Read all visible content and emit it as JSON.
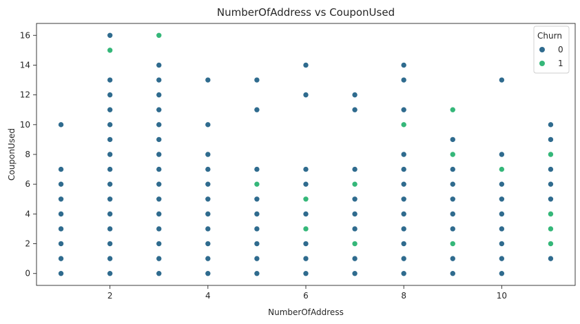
{
  "chart_data": {
    "type": "scatter",
    "title": "NumberOfAddress vs CouponUsed",
    "xlabel": "NumberOfAddress",
    "ylabel": "CouponUsed",
    "xlim": [
      0.5,
      11.5
    ],
    "ylim": [
      -0.8,
      16.8
    ],
    "xticks": [
      2,
      4,
      6,
      8,
      10
    ],
    "yticks": [
      0,
      2,
      4,
      6,
      8,
      10,
      12,
      14,
      16
    ],
    "grid": false,
    "legend": {
      "title": "Churn",
      "placement": "top-right",
      "entries": [
        {
          "label": "0",
          "color": "#2f6b8e"
        },
        {
          "label": "1",
          "color": "#35b779"
        }
      ]
    },
    "series": [
      {
        "name": "0",
        "color": "#2f6b8e",
        "points": [
          [
            1,
            0
          ],
          [
            1,
            1
          ],
          [
            1,
            2
          ],
          [
            1,
            3
          ],
          [
            1,
            4
          ],
          [
            1,
            5
          ],
          [
            1,
            6
          ],
          [
            1,
            7
          ],
          [
            1,
            10
          ],
          [
            2,
            0
          ],
          [
            2,
            1
          ],
          [
            2,
            2
          ],
          [
            2,
            3
          ],
          [
            2,
            4
          ],
          [
            2,
            5
          ],
          [
            2,
            6
          ],
          [
            2,
            7
          ],
          [
            2,
            8
          ],
          [
            2,
            9
          ],
          [
            2,
            10
          ],
          [
            2,
            11
          ],
          [
            2,
            12
          ],
          [
            2,
            13
          ],
          [
            2,
            16
          ],
          [
            3,
            0
          ],
          [
            3,
            1
          ],
          [
            3,
            2
          ],
          [
            3,
            3
          ],
          [
            3,
            4
          ],
          [
            3,
            5
          ],
          [
            3,
            6
          ],
          [
            3,
            7
          ],
          [
            3,
            8
          ],
          [
            3,
            9
          ],
          [
            3,
            10
          ],
          [
            3,
            11
          ],
          [
            3,
            12
          ],
          [
            3,
            13
          ],
          [
            3,
            14
          ],
          [
            4,
            0
          ],
          [
            4,
            1
          ],
          [
            4,
            2
          ],
          [
            4,
            3
          ],
          [
            4,
            4
          ],
          [
            4,
            5
          ],
          [
            4,
            6
          ],
          [
            4,
            7
          ],
          [
            4,
            8
          ],
          [
            4,
            10
          ],
          [
            4,
            13
          ],
          [
            5,
            0
          ],
          [
            5,
            1
          ],
          [
            5,
            2
          ],
          [
            5,
            3
          ],
          [
            5,
            4
          ],
          [
            5,
            5
          ],
          [
            5,
            7
          ],
          [
            5,
            11
          ],
          [
            5,
            13
          ],
          [
            6,
            0
          ],
          [
            6,
            1
          ],
          [
            6,
            2
          ],
          [
            6,
            4
          ],
          [
            6,
            6
          ],
          [
            6,
            7
          ],
          [
            6,
            12
          ],
          [
            6,
            14
          ],
          [
            7,
            0
          ],
          [
            7,
            1
          ],
          [
            7,
            3
          ],
          [
            7,
            4
          ],
          [
            7,
            5
          ],
          [
            7,
            7
          ],
          [
            7,
            11
          ],
          [
            7,
            12
          ],
          [
            8,
            0
          ],
          [
            8,
            1
          ],
          [
            8,
            2
          ],
          [
            8,
            3
          ],
          [
            8,
            4
          ],
          [
            8,
            5
          ],
          [
            8,
            6
          ],
          [
            8,
            7
          ],
          [
            8,
            8
          ],
          [
            8,
            11
          ],
          [
            8,
            13
          ],
          [
            8,
            14
          ],
          [
            9,
            0
          ],
          [
            9,
            1
          ],
          [
            9,
            3
          ],
          [
            9,
            4
          ],
          [
            9,
            5
          ],
          [
            9,
            6
          ],
          [
            9,
            7
          ],
          [
            9,
            9
          ],
          [
            10,
            0
          ],
          [
            10,
            1
          ],
          [
            10,
            2
          ],
          [
            10,
            3
          ],
          [
            10,
            4
          ],
          [
            10,
            5
          ],
          [
            10,
            6
          ],
          [
            10,
            8
          ],
          [
            10,
            13
          ],
          [
            11,
            1
          ],
          [
            11,
            5
          ],
          [
            11,
            6
          ],
          [
            11,
            7
          ],
          [
            11,
            9
          ],
          [
            11,
            10
          ]
        ]
      },
      {
        "name": "1",
        "color": "#35b779",
        "points": [
          [
            2,
            15
          ],
          [
            3,
            16
          ],
          [
            5,
            6
          ],
          [
            6,
            3
          ],
          [
            6,
            5
          ],
          [
            7,
            2
          ],
          [
            7,
            6
          ],
          [
            8,
            10
          ],
          [
            9,
            2
          ],
          [
            9,
            8
          ],
          [
            9,
            11
          ],
          [
            10,
            7
          ],
          [
            11,
            2
          ],
          [
            11,
            3
          ],
          [
            11,
            4
          ],
          [
            11,
            8
          ]
        ]
      }
    ]
  }
}
